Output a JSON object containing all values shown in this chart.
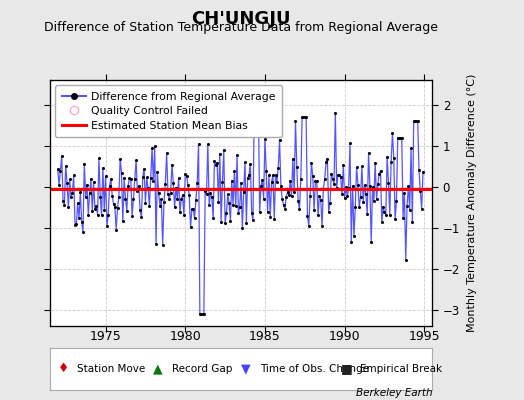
{
  "title": "CH'UNGJU",
  "subtitle": "Difference of Station Temperature Data from Regional Average",
  "ylabel": "Monthly Temperature Anomaly Difference (°C)",
  "xlabel_bottom": "Berkeley Earth",
  "bias_line": -0.05,
  "ylim": [
    -3.4,
    2.6
  ],
  "xlim": [
    1971.5,
    1995.5
  ],
  "xticks": [
    1975,
    1980,
    1985,
    1990,
    1995
  ],
  "yticks": [
    -3,
    -2,
    -1,
    0,
    1,
    2
  ],
  "bg_color": "#e8e8e8",
  "plot_bg_color": "#ffffff",
  "line_color": "#5555ff",
  "bias_color": "#ff0000",
  "marker_color": "#000000",
  "grid_color": "#cccccc",
  "title_fontsize": 13,
  "subtitle_fontsize": 9,
  "seed": 42,
  "n_points": 276,
  "start_year": 1972.0,
  "end_year": 1995.0
}
